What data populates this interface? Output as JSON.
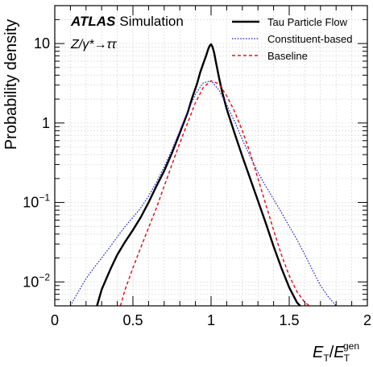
{
  "chart_data": {
    "type": "line",
    "title": "",
    "experiment": "ATLAS",
    "experiment_label": "Simulation",
    "process_label": "Z/γ*→ττ",
    "xlabel": "E_T/E_T^gen",
    "xlabel_parts": {
      "E1": "E",
      "T1": "T",
      "slash": "/",
      "E2": "E",
      "T2": "T",
      "gen": "gen"
    },
    "ylabel": "Probability density",
    "xlim": [
      0,
      2
    ],
    "ylim": [
      0.005,
      30
    ],
    "y_scale": "log",
    "grid": true,
    "legend_position": "top-right",
    "x_ticks": [
      "0",
      "0.5",
      "1",
      "1.5",
      "2"
    ],
    "x_tick_values": [
      0,
      0.5,
      1,
      1.5,
      2
    ],
    "y_ticks": [
      {
        "base": "10",
        "exp": "−2",
        "value": 0.01
      },
      {
        "base": "10",
        "exp": "−1",
        "value": 0.1
      },
      {
        "base": "1",
        "exp": "",
        "value": 1
      },
      {
        "base": "10",
        "exp": "",
        "value": 10
      }
    ],
    "series": [
      {
        "name": "Tau Particle Flow",
        "color": "#000000",
        "style": "solid",
        "x": [
          0.27,
          0.3,
          0.33,
          0.36,
          0.4,
          0.45,
          0.5,
          0.55,
          0.6,
          0.65,
          0.7,
          0.75,
          0.8,
          0.85,
          0.88,
          0.91,
          0.93,
          0.95,
          0.97,
          0.98,
          0.99,
          1.0,
          1.01,
          1.02,
          1.03,
          1.05,
          1.07,
          1.1,
          1.15,
          1.2,
          1.25,
          1.3,
          1.35,
          1.4,
          1.45,
          1.5,
          1.55,
          1.57
        ],
        "y": [
          0.005,
          0.008,
          0.011,
          0.015,
          0.022,
          0.032,
          0.045,
          0.065,
          0.1,
          0.16,
          0.25,
          0.42,
          0.75,
          1.35,
          2.1,
          3.1,
          4.3,
          5.6,
          7.2,
          8.3,
          9.3,
          9.8,
          9.0,
          7.6,
          6.0,
          3.8,
          2.5,
          1.5,
          0.75,
          0.38,
          0.2,
          0.105,
          0.055,
          0.028,
          0.015,
          0.0085,
          0.0055,
          0.005
        ]
      },
      {
        "name": "Constituent-based",
        "color": "#1f1fd6",
        "style": "dotted",
        "x": [
          0.1,
          0.15,
          0.2,
          0.25,
          0.3,
          0.35,
          0.4,
          0.45,
          0.5,
          0.55,
          0.6,
          0.65,
          0.7,
          0.75,
          0.8,
          0.85,
          0.9,
          0.95,
          1.0,
          1.05,
          1.1,
          1.15,
          1.2,
          1.25,
          1.3,
          1.35,
          1.4,
          1.45,
          1.5,
          1.55,
          1.6,
          1.65,
          1.7,
          1.75,
          1.8
        ],
        "y": [
          0.005,
          0.0075,
          0.011,
          0.015,
          0.02,
          0.027,
          0.037,
          0.05,
          0.065,
          0.085,
          0.12,
          0.18,
          0.28,
          0.46,
          0.8,
          1.4,
          2.3,
          3.2,
          3.4,
          2.6,
          1.7,
          1.05,
          0.62,
          0.38,
          0.24,
          0.16,
          0.11,
          0.075,
          0.05,
          0.034,
          0.022,
          0.014,
          0.009,
          0.0065,
          0.005
        ]
      },
      {
        "name": "Baseline",
        "color": "#e8121e",
        "style": "dashed",
        "x": [
          0.42,
          0.45,
          0.5,
          0.55,
          0.6,
          0.65,
          0.7,
          0.75,
          0.8,
          0.85,
          0.9,
          0.95,
          1.0,
          1.05,
          1.1,
          1.15,
          1.2,
          1.25,
          1.3,
          1.35,
          1.4,
          1.45,
          1.5,
          1.55,
          1.6,
          1.63
        ],
        "y": [
          0.005,
          0.008,
          0.015,
          0.027,
          0.048,
          0.085,
          0.16,
          0.3,
          0.56,
          1.0,
          1.8,
          2.8,
          3.4,
          3.1,
          2.2,
          1.4,
          0.8,
          0.42,
          0.2,
          0.095,
          0.045,
          0.022,
          0.012,
          0.0075,
          0.0055,
          0.005
        ]
      }
    ]
  }
}
